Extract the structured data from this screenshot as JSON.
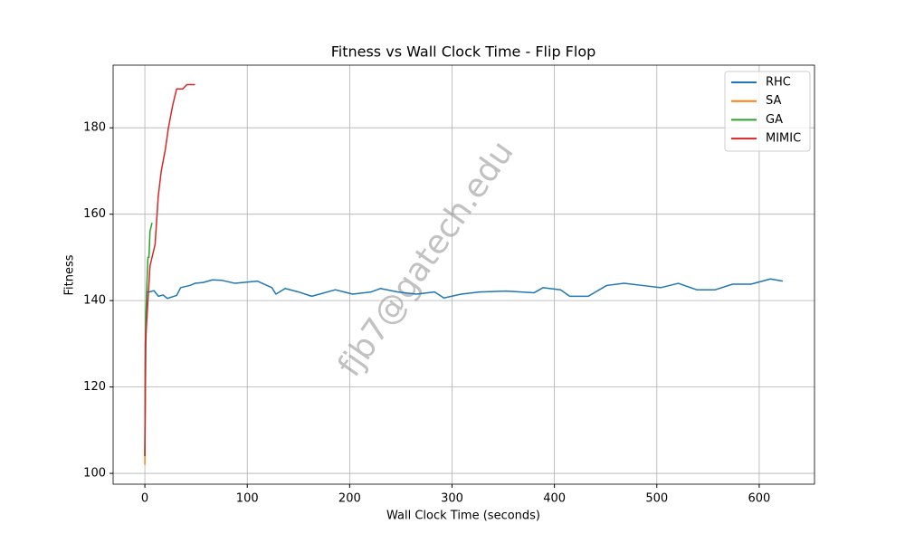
{
  "chart_data": {
    "type": "line",
    "title": "Fitness vs Wall Clock Time - Flip Flop",
    "x_label": "Wall Clock Time (seconds)",
    "y_label": "Fitness",
    "watermark": "fjb7@gatech.edu",
    "xlim": [
      -31,
      654
    ],
    "ylim": [
      97.5,
      194.5
    ],
    "xticks": [
      0,
      100,
      200,
      300,
      400,
      500,
      600
    ],
    "yticks": [
      100,
      120,
      140,
      160,
      180
    ],
    "grid": true,
    "legend": "upper right",
    "series": [
      {
        "name": "RHC",
        "color": "#1f77b4",
        "x": [
          0,
          0.9,
          1.8,
          4.4,
          8.8,
          13.3,
          17.7,
          22,
          31,
          35,
          44,
          49,
          57,
          66,
          75,
          88,
          110,
          124,
          128,
          137,
          150,
          163,
          186,
          203,
          221,
          230,
          247,
          265,
          283,
          292,
          309,
          327,
          353,
          380,
          389,
          406,
          415,
          433,
          451,
          468,
          486,
          504,
          521,
          539,
          557,
          574,
          592,
          611,
          623
        ],
        "values": [
          104,
          128,
          142,
          142,
          142.3,
          141,
          141.3,
          140.5,
          141.2,
          143,
          143.5,
          144,
          144.2,
          144.8,
          144.7,
          144,
          144.5,
          143,
          141.5,
          142.8,
          142,
          141,
          142.5,
          141.5,
          142,
          142.8,
          142,
          141.5,
          142,
          140.6,
          141.5,
          142,
          142.2,
          141.8,
          143,
          142.5,
          141,
          141,
          143.5,
          144,
          143.5,
          143,
          144,
          142.5,
          142.5,
          143.8,
          143.8,
          145,
          144.5
        ]
      },
      {
        "name": "SA",
        "color": "#ff7f0e",
        "x": [
          0,
          0.2,
          0.4,
          0.6,
          0.8,
          1.0
        ],
        "values": [
          102,
          110,
          120,
          127,
          132,
          135
        ]
      },
      {
        "name": "GA",
        "color": "#2ca02c",
        "x": [
          0,
          0.5,
          1,
          2,
          3,
          4,
          5,
          6,
          7
        ],
        "values": [
          104,
          130,
          137,
          144,
          150,
          150,
          156,
          157,
          158
        ]
      },
      {
        "name": "MIMIC",
        "color": "#d62728",
        "x": [
          0,
          0.5,
          3,
          5,
          8,
          10,
          13,
          16,
          20,
          23,
          27,
          31,
          37,
          41,
          49
        ],
        "values": [
          104,
          130,
          140,
          148,
          151,
          153,
          164,
          170,
          175,
          180,
          185,
          189,
          189,
          190,
          190
        ]
      }
    ]
  }
}
